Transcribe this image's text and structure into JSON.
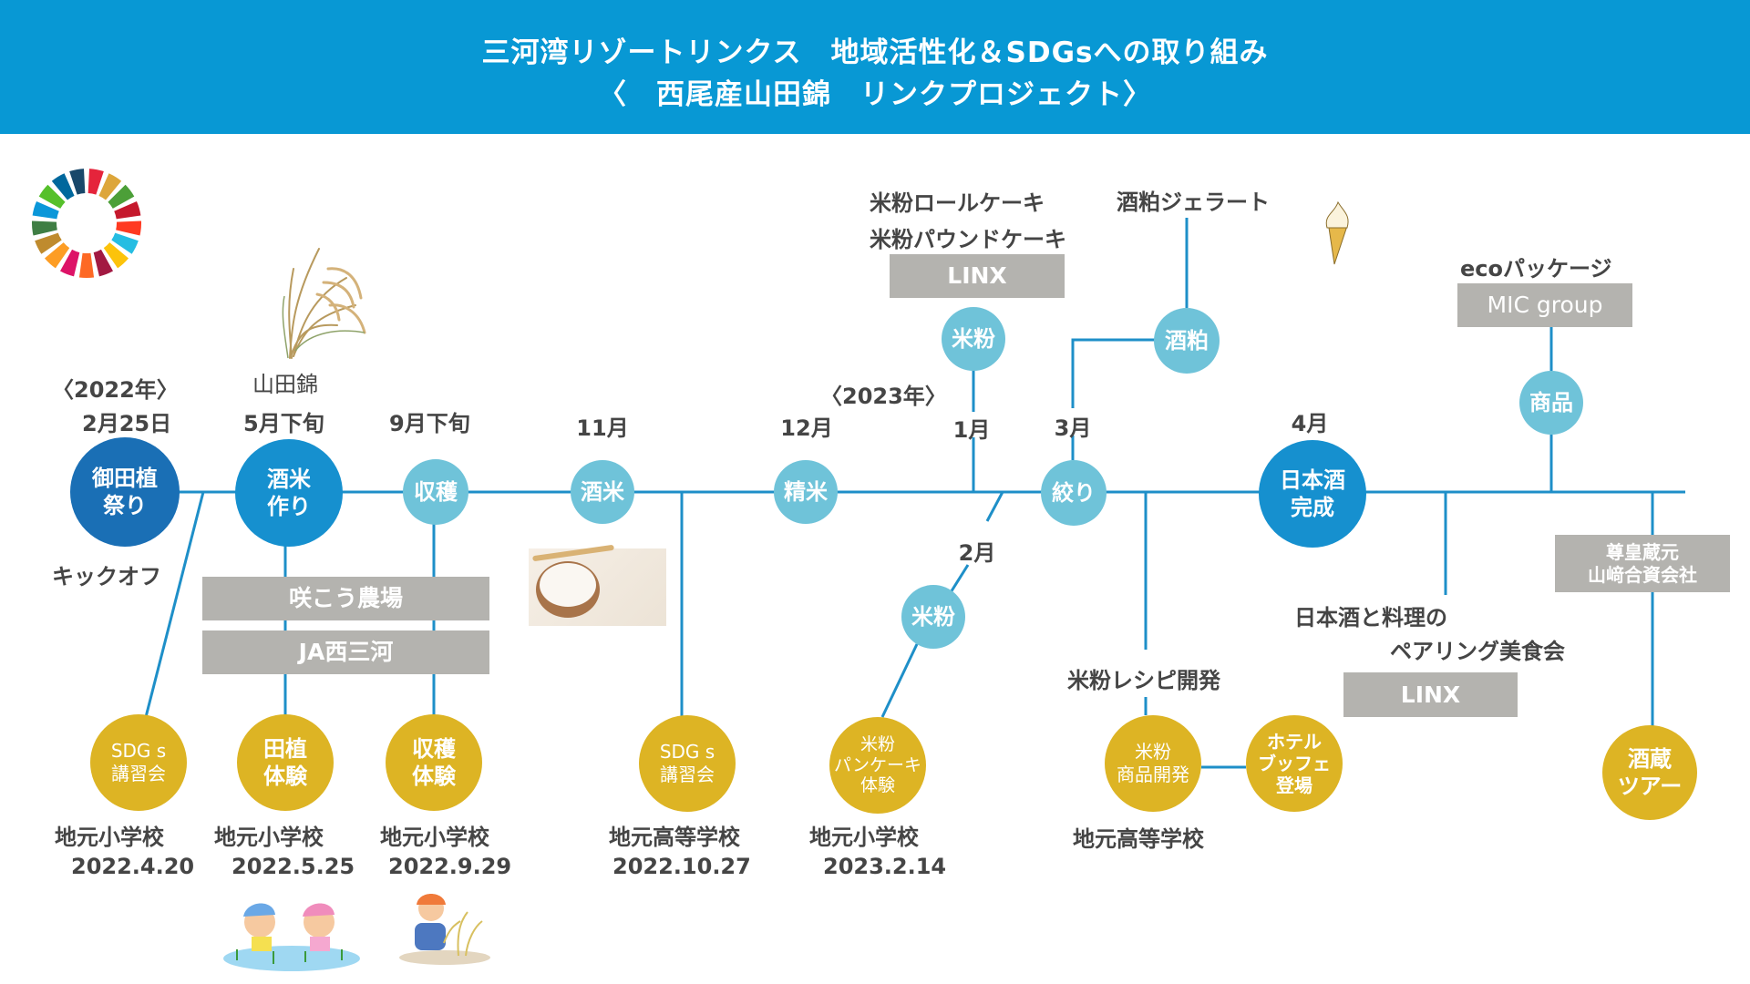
{
  "header": {
    "title_line1": "三河湾リゾートリンクス　地域活性化＆SDGsへの取り組み",
    "title_line2": "〈　西尾産山田錦　リンクプロジェクト〉"
  },
  "colors": {
    "header_bg": "#0898d4",
    "line": "#1e8fc8",
    "node_dark": "#1a6fb5",
    "node_mid": "#1690cf",
    "node_light": "#6fc3d9",
    "node_gold": "#ddb424",
    "org_box": "#b4b3af"
  },
  "logo": {
    "icon": "sdgs-wheel-icon"
  },
  "years": {
    "y2022": "〈2022年〉",
    "y2023": "〈2023年〉"
  },
  "variety_label": "山田錦",
  "timeline": {
    "dates": {
      "feb25": "2月25日",
      "may_late": "5月下旬",
      "sep_late": "9月下旬",
      "nov": "11月",
      "dec": "12月",
      "jan": "1月",
      "feb": "2月",
      "mar": "3月",
      "apr": "4月"
    },
    "main_nodes": {
      "otaue": [
        "御田植",
        "祭り"
      ],
      "sakamai_make": [
        "酒米",
        "作り"
      ],
      "harvest": "収穫",
      "sakamai": "酒米",
      "seimai": "精米",
      "shibori": "絞り",
      "sake_done": [
        "日本酒",
        "完成"
      ]
    },
    "kickoff": "キックオフ"
  },
  "partners": {
    "farm": "咲こう農場",
    "ja": "JA西三河",
    "linx_top": "LINX",
    "mic": "MIC group",
    "linx_bottom": "LINX",
    "brewery": [
      "尊皇蔵元",
      "山﨑合資会社"
    ]
  },
  "branches": {
    "komeko_top": "米粉",
    "komeko_products": [
      "米粉ロールケーキ",
      "米粉パウンドケーキ"
    ],
    "sakekasu": "酒粕",
    "sakekasu_product": "酒粕ジェラート",
    "shohin": "商品",
    "eco_package": "ecoパッケージ",
    "komeko_bottom": "米粉",
    "recipe_dev": "米粉レシピ開発",
    "pairing": [
      "日本酒と料理の",
      "ペアリング美食会"
    ]
  },
  "school_events": [
    {
      "circle": [
        "SDG s",
        "講習会"
      ],
      "school": "地元小学校",
      "date": "2022.4.20"
    },
    {
      "circle": [
        "田植",
        "体験"
      ],
      "school": "地元小学校",
      "date": "2022.5.25"
    },
    {
      "circle": [
        "収穫",
        "体験"
      ],
      "school": "地元小学校",
      "date": "2022.9.29"
    },
    {
      "circle": [
        "SDG s",
        "講習会"
      ],
      "school": "地元高等学校",
      "date": "2022.10.27"
    },
    {
      "circle": [
        "米粉",
        "パンケーキ",
        "体験"
      ],
      "school": "地元小学校",
      "date": "2023.2.14"
    },
    {
      "circle": [
        "米粉",
        "商品開発"
      ],
      "school": "地元高等学校"
    },
    {
      "circle": [
        "ホテル",
        "ブッフェ",
        "登場"
      ]
    },
    {
      "circle": [
        "酒蔵",
        "ツアー"
      ]
    }
  ]
}
